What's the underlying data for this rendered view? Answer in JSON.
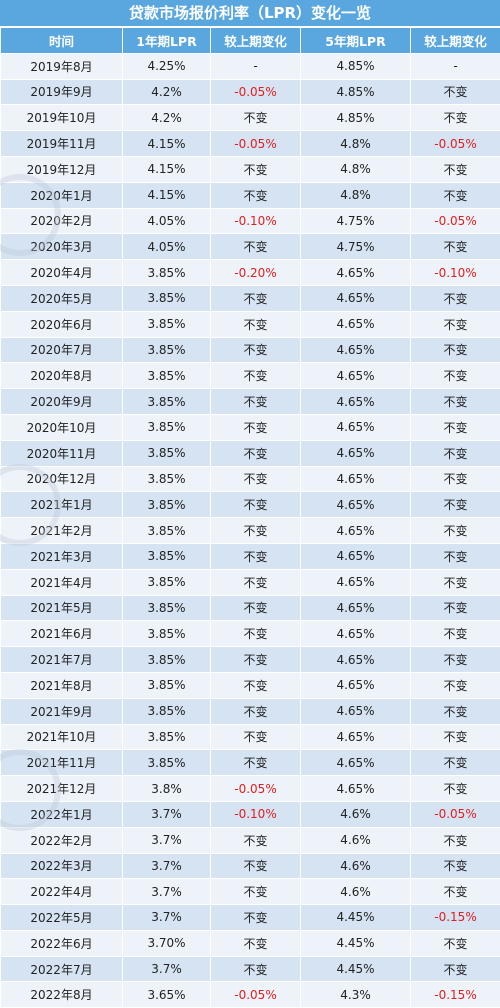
{
  "title": "贷款市场报价利率（LPR）变化一览",
  "headers": [
    "时间",
    "1年期LPR",
    "较上期变化",
    "5年期LPR",
    "较上期变化"
  ],
  "negative_color": "#e02020",
  "header_color": "#5aa6df",
  "rows": [
    {
      "date": "2019年8月",
      "lpr1y": "4.25%",
      "chg1y": "-",
      "lpr5y": "4.85%",
      "chg5y": "-"
    },
    {
      "date": "2019年9月",
      "lpr1y": "4.2%",
      "chg1y": "-0.05%",
      "lpr5y": "4.85%",
      "chg5y": "不变"
    },
    {
      "date": "2019年10月",
      "lpr1y": "4.2%",
      "chg1y": "不变",
      "lpr5y": "4.85%",
      "chg5y": "不变"
    },
    {
      "date": "2019年11月",
      "lpr1y": "4.15%",
      "chg1y": "-0.05%",
      "lpr5y": "4.8%",
      "chg5y": "-0.05%"
    },
    {
      "date": "2019年12月",
      "lpr1y": "4.15%",
      "chg1y": "不变",
      "lpr5y": "4.8%",
      "chg5y": "不变"
    },
    {
      "date": "2020年1月",
      "lpr1y": "4.15%",
      "chg1y": "不变",
      "lpr5y": "4.8%",
      "chg5y": "不变"
    },
    {
      "date": "2020年2月",
      "lpr1y": "4.05%",
      "chg1y": "-0.10%",
      "lpr5y": "4.75%",
      "chg5y": "-0.05%"
    },
    {
      "date": "2020年3月",
      "lpr1y": "4.05%",
      "chg1y": "不变",
      "lpr5y": "4.75%",
      "chg5y": "不变"
    },
    {
      "date": "2020年4月",
      "lpr1y": "3.85%",
      "chg1y": "-0.20%",
      "lpr5y": "4.65%",
      "chg5y": "-0.10%"
    },
    {
      "date": "2020年5月",
      "lpr1y": "3.85%",
      "chg1y": "不变",
      "lpr5y": "4.65%",
      "chg5y": "不变"
    },
    {
      "date": "2020年6月",
      "lpr1y": "3.85%",
      "chg1y": "不变",
      "lpr5y": "4.65%",
      "chg5y": "不变"
    },
    {
      "date": "2020年7月",
      "lpr1y": "3.85%",
      "chg1y": "不变",
      "lpr5y": "4.65%",
      "chg5y": "不变"
    },
    {
      "date": "2020年8月",
      "lpr1y": "3.85%",
      "chg1y": "不变",
      "lpr5y": "4.65%",
      "chg5y": "不变"
    },
    {
      "date": "2020年9月",
      "lpr1y": "3.85%",
      "chg1y": "不变",
      "lpr5y": "4.65%",
      "chg5y": "不变"
    },
    {
      "date": "2020年10月",
      "lpr1y": "3.85%",
      "chg1y": "不变",
      "lpr5y": "4.65%",
      "chg5y": "不变"
    },
    {
      "date": "2020年11月",
      "lpr1y": "3.85%",
      "chg1y": "不变",
      "lpr5y": "4.65%",
      "chg5y": "不变"
    },
    {
      "date": "2020年12月",
      "lpr1y": "3.85%",
      "chg1y": "不变",
      "lpr5y": "4.65%",
      "chg5y": "不变"
    },
    {
      "date": "2021年1月",
      "lpr1y": "3.85%",
      "chg1y": "不变",
      "lpr5y": "4.65%",
      "chg5y": "不变"
    },
    {
      "date": "2021年2月",
      "lpr1y": "3.85%",
      "chg1y": "不变",
      "lpr5y": "4.65%",
      "chg5y": "不变"
    },
    {
      "date": "2021年3月",
      "lpr1y": "3.85%",
      "chg1y": "不变",
      "lpr5y": "4.65%",
      "chg5y": "不变"
    },
    {
      "date": "2021年4月",
      "lpr1y": "3.85%",
      "chg1y": "不变",
      "lpr5y": "4.65%",
      "chg5y": "不变"
    },
    {
      "date": "2021年5月",
      "lpr1y": "3.85%",
      "chg1y": "不变",
      "lpr5y": "4.65%",
      "chg5y": "不变"
    },
    {
      "date": "2021年6月",
      "lpr1y": "3.85%",
      "chg1y": "不变",
      "lpr5y": "4.65%",
      "chg5y": "不变"
    },
    {
      "date": "2021年7月",
      "lpr1y": "3.85%",
      "chg1y": "不变",
      "lpr5y": "4.65%",
      "chg5y": "不变"
    },
    {
      "date": "2021年8月",
      "lpr1y": "3.85%",
      "chg1y": "不变",
      "lpr5y": "4.65%",
      "chg5y": "不变"
    },
    {
      "date": "2021年9月",
      "lpr1y": "3.85%",
      "chg1y": "不变",
      "lpr5y": "4.65%",
      "chg5y": "不变"
    },
    {
      "date": "2021年10月",
      "lpr1y": "3.85%",
      "chg1y": "不变",
      "lpr5y": "4.65%",
      "chg5y": "不变"
    },
    {
      "date": "2021年11月",
      "lpr1y": "3.85%",
      "chg1y": "不变",
      "lpr5y": "4.65%",
      "chg5y": "不变"
    },
    {
      "date": "2021年12月",
      "lpr1y": "3.8%",
      "chg1y": "-0.05%",
      "lpr5y": "4.65%",
      "chg5y": "不变"
    },
    {
      "date": "2022年1月",
      "lpr1y": "3.7%",
      "chg1y": "-0.10%",
      "lpr5y": "4.6%",
      "chg5y": "-0.05%"
    },
    {
      "date": "2022年2月",
      "lpr1y": "3.7%",
      "chg1y": "不变",
      "lpr5y": "4.6%",
      "chg5y": "不变"
    },
    {
      "date": "2022年3月",
      "lpr1y": "3.7%",
      "chg1y": "不变",
      "lpr5y": "4.6%",
      "chg5y": "不变"
    },
    {
      "date": "2022年4月",
      "lpr1y": "3.7%",
      "chg1y": "不变",
      "lpr5y": "4.6%",
      "chg5y": "不变"
    },
    {
      "date": "2022年5月",
      "lpr1y": "3.7%",
      "chg1y": "不变",
      "lpr5y": "4.45%",
      "chg5y": "-0.15%"
    },
    {
      "date": "2022年6月",
      "lpr1y": "3.70%",
      "chg1y": "不变",
      "lpr5y": "4.45%",
      "chg5y": "不变"
    },
    {
      "date": "2022年7月",
      "lpr1y": "3.7%",
      "chg1y": "不变",
      "lpr5y": "4.45%",
      "chg5y": "不变"
    },
    {
      "date": "2022年8月",
      "lpr1y": "3.65%",
      "chg1y": "-0.05%",
      "lpr5y": "4.3%",
      "chg5y": "-0.15%"
    }
  ]
}
